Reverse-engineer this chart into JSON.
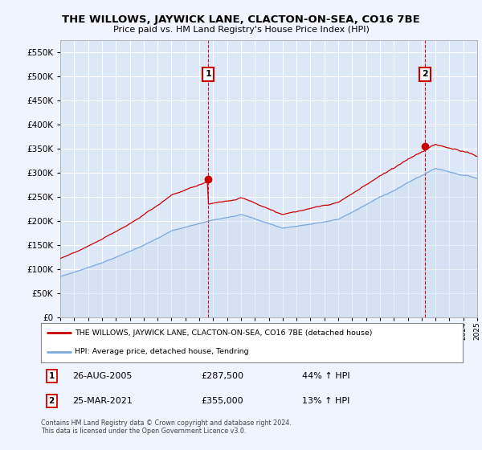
{
  "title": "THE WILLOWS, JAYWICK LANE, CLACTON-ON-SEA, CO16 7BE",
  "subtitle": "Price paid vs. HM Land Registry's House Price Index (HPI)",
  "background_color": "#f0f4ff",
  "plot_bg_color": "#dce8f8",
  "grid_color": "#ffffff",
  "red_color": "#cc0000",
  "blue_color": "#7aaadd",
  "blue_fill": "#c8daf0",
  "ylim": [
    0,
    575000
  ],
  "yticks": [
    0,
    50000,
    100000,
    150000,
    200000,
    250000,
    300000,
    350000,
    400000,
    450000,
    500000,
    550000
  ],
  "year_start": 1995,
  "year_end": 2025,
  "sale1_year": 2005.65,
  "sale1_price": 287500,
  "sale2_year": 2021.23,
  "sale2_price": 355000,
  "sale1_date": "26-AUG-2005",
  "sale1_hpi_pct": "44%",
  "sale2_date": "25-MAR-2021",
  "sale2_hpi_pct": "13%",
  "legend_line1": "THE WILLOWS, JAYWICK LANE, CLACTON-ON-SEA, CO16 7BE (detached house)",
  "legend_line2": "HPI: Average price, detached house, Tendring",
  "footer1": "Contains HM Land Registry data © Crown copyright and database right 2024.",
  "footer2": "This data is licensed under the Open Government Licence v3.0."
}
